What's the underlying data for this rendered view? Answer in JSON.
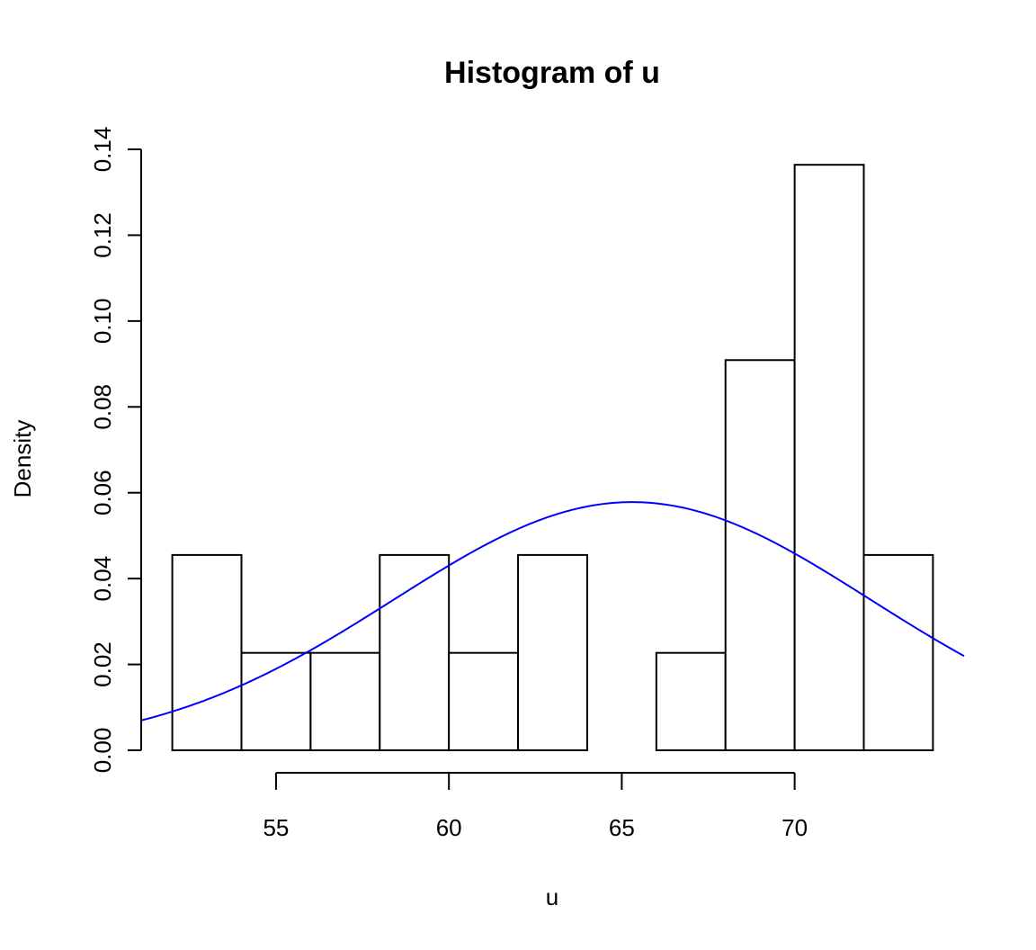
{
  "chart_data": {
    "type": "bar",
    "title": "Histogram of u",
    "xlabel": "u",
    "ylabel": "Density",
    "bins": [
      {
        "from": 52,
        "to": 54,
        "density": 0.0455
      },
      {
        "from": 54,
        "to": 56,
        "density": 0.0227
      },
      {
        "from": 56,
        "to": 58,
        "density": 0.0227
      },
      {
        "from": 58,
        "to": 60,
        "density": 0.0455
      },
      {
        "from": 60,
        "to": 62,
        "density": 0.0227
      },
      {
        "from": 62,
        "to": 64,
        "density": 0.0455
      },
      {
        "from": 64,
        "to": 66,
        "density": 0.0
      },
      {
        "from": 66,
        "to": 68,
        "density": 0.0227
      },
      {
        "from": 68,
        "to": 70,
        "density": 0.0909
      },
      {
        "from": 70,
        "to": 72,
        "density": 0.1364
      },
      {
        "from": 72,
        "to": 74,
        "density": 0.0455
      }
    ],
    "x_ticks": [
      55,
      60,
      65,
      70
    ],
    "y_ticks": [
      "0.00",
      "0.02",
      "0.04",
      "0.06",
      "0.08",
      "0.10",
      "0.12",
      "0.14"
    ],
    "xlim": [
      51.1,
      74.9
    ],
    "ylim": [
      0,
      0.14
    ],
    "density_curve": {
      "type": "normal",
      "mean": 65.3,
      "sd": 6.9,
      "color": "#0000ff"
    },
    "grid": false
  }
}
